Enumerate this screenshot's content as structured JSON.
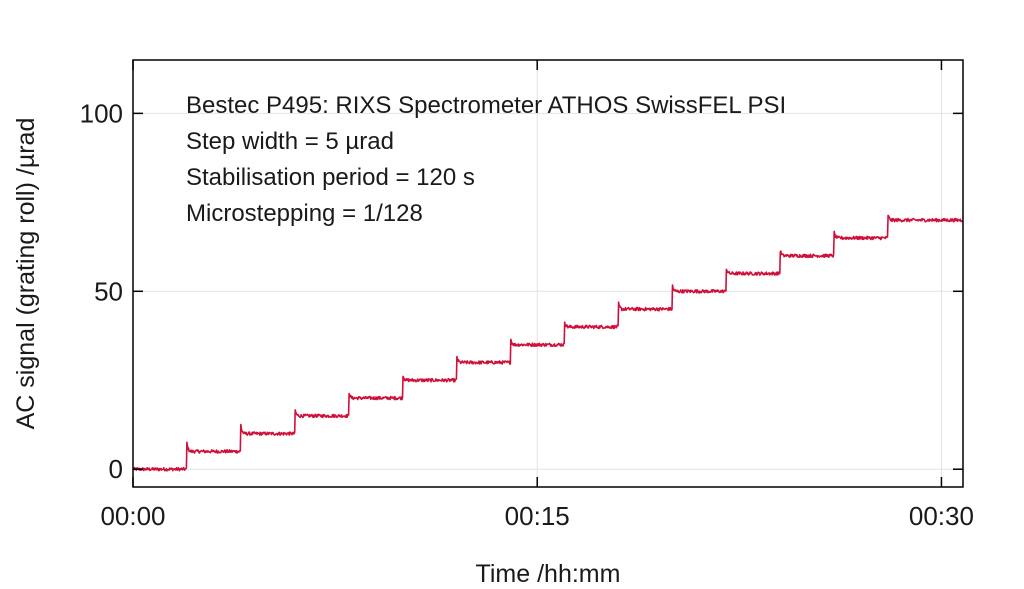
{
  "chart_data": {
    "type": "line",
    "xlabel": "Time /hh:mm",
    "ylabel": "AC signal (grating roll) /µrad",
    "xlim_minutes": [
      0,
      30.8
    ],
    "ylim": [
      -5,
      115
    ],
    "x_ticks": [
      {
        "minutes": 0,
        "label": "00:00"
      },
      {
        "minutes": 15,
        "label": "00:15"
      },
      {
        "minutes": 30,
        "label": "00:30"
      }
    ],
    "y_ticks": [
      {
        "value": 0,
        "label": "0"
      },
      {
        "value": 50,
        "label": "50"
      },
      {
        "value": 100,
        "label": "100"
      }
    ],
    "grid": true,
    "annotations": [
      "Bestec P495: RIXS Spectrometer ATHOS SwissFEL PSI",
      "Step width = 5 µrad",
      "Stabilisation period = 120 s",
      "Microstepping = 1/128"
    ],
    "series": [
      {
        "color": "#d0103a",
        "step_width": 5,
        "step_period_minutes": 2,
        "first_step_minutes": 2,
        "steps": [
          {
            "start_minutes": 0,
            "value": 0
          },
          {
            "start_minutes": 2,
            "value": 5
          },
          {
            "start_minutes": 4,
            "value": 10
          },
          {
            "start_minutes": 6,
            "value": 15
          },
          {
            "start_minutes": 8,
            "value": 20
          },
          {
            "start_minutes": 10,
            "value": 25
          },
          {
            "start_minutes": 12,
            "value": 30
          },
          {
            "start_minutes": 14,
            "value": 35
          },
          {
            "start_minutes": 16,
            "value": 40
          },
          {
            "start_minutes": 18,
            "value": 45
          },
          {
            "start_minutes": 20,
            "value": 50
          },
          {
            "start_minutes": 22,
            "value": 55
          },
          {
            "start_minutes": 24,
            "value": 60
          },
          {
            "start_minutes": 26,
            "value": 65
          },
          {
            "start_minutes": 28,
            "value": 70
          }
        ],
        "end_minutes": 30.8
      }
    ]
  }
}
